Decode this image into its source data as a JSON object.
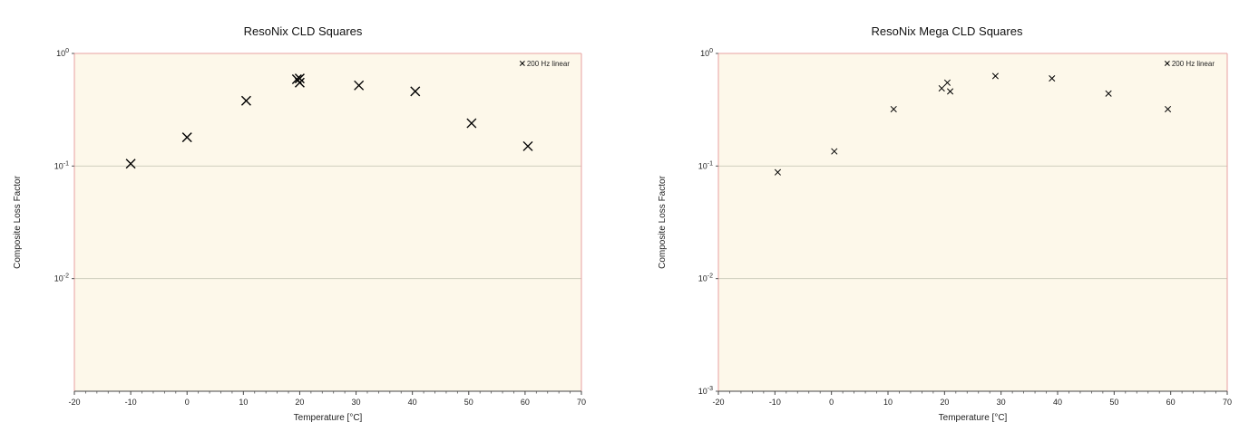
{
  "chart_data": [
    {
      "type": "scatter",
      "title": "ResoNix CLD Squares",
      "xlabel": "Temperature [°C]",
      "ylabel": "Composite Loss Factor",
      "xlim": [
        -20,
        70
      ],
      "ylim": [
        0.001,
        1
      ],
      "yscale": "log",
      "x_ticks": [
        "-20",
        "-10",
        "0",
        "10",
        "20",
        "30",
        "40",
        "50",
        "60",
        "70"
      ],
      "y_ticks": [
        {
          "base": "10",
          "exp": "0"
        },
        {
          "base": "10",
          "exp": "-1"
        },
        {
          "base": "10",
          "exp": "-2"
        }
      ],
      "grid": true,
      "legend_position": "top-right",
      "series": [
        {
          "name": "200 Hz linear",
          "marker": "x",
          "color": "#000000",
          "points": [
            {
              "x": -10,
              "y": 0.105
            },
            {
              "x": 0,
              "y": 0.18
            },
            {
              "x": 10.5,
              "y": 0.38
            },
            {
              "x": 19.5,
              "y": 0.59
            },
            {
              "x": 20,
              "y": 0.55
            },
            {
              "x": 20,
              "y": 0.6
            },
            {
              "x": 30.5,
              "y": 0.52
            },
            {
              "x": 40.5,
              "y": 0.46
            },
            {
              "x": 50.5,
              "y": 0.24
            },
            {
              "x": 60.5,
              "y": 0.15
            }
          ]
        }
      ]
    },
    {
      "type": "scatter",
      "title": "ResoNix Mega CLD Squares",
      "xlabel": "Temperature [°C]",
      "ylabel": "Composite Loss Factor",
      "xlim": [
        -20,
        70
      ],
      "ylim": [
        0.001,
        1
      ],
      "yscale": "log",
      "x_ticks": [
        "-20",
        "-10",
        "0",
        "10",
        "20",
        "30",
        "40",
        "50",
        "60",
        "70"
      ],
      "y_ticks": [
        {
          "base": "10",
          "exp": "0"
        },
        {
          "base": "10",
          "exp": "-1"
        },
        {
          "base": "10",
          "exp": "-2"
        },
        {
          "base": "10",
          "exp": "-3"
        }
      ],
      "grid": true,
      "legend_position": "top-right",
      "series": [
        {
          "name": "200 Hz linear",
          "marker": "x",
          "color": "#000000",
          "points": [
            {
              "x": -9.5,
              "y": 0.088
            },
            {
              "x": 0.5,
              "y": 0.135
            },
            {
              "x": 11,
              "y": 0.32
            },
            {
              "x": 19.5,
              "y": 0.49
            },
            {
              "x": 20.5,
              "y": 0.55
            },
            {
              "x": 21,
              "y": 0.46
            },
            {
              "x": 29,
              "y": 0.63
            },
            {
              "x": 39,
              "y": 0.6
            },
            {
              "x": 49,
              "y": 0.44
            },
            {
              "x": 59.5,
              "y": 0.32
            }
          ]
        }
      ]
    }
  ],
  "colors": {
    "plot_background": "#fdf8ea",
    "plot_border": "#e8a0a0",
    "grid": "#cfcfbf",
    "marker": "#000000"
  }
}
